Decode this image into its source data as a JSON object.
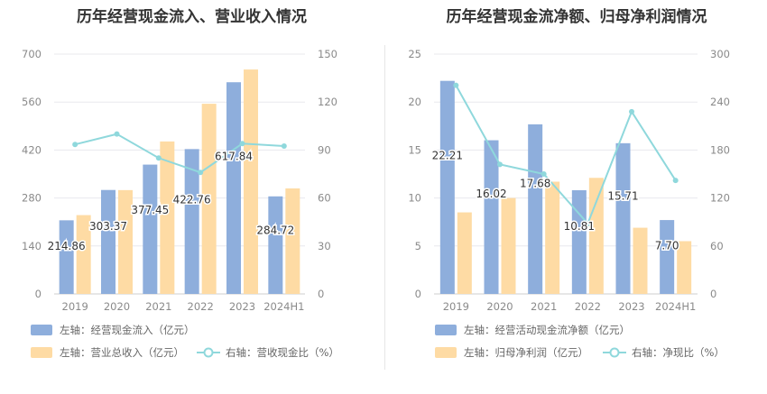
{
  "colors": {
    "bar_blue": "#8eaedc",
    "bar_orange": "#fedba4",
    "line_teal": "#8fd8dc",
    "grid": "#e8e8ee",
    "text": "#333333",
    "axis": "#8a8a8a"
  },
  "chart_data": [
    {
      "type": "bar",
      "title": "历年经营现金流入、营业收入情况",
      "categories": [
        "2019",
        "2020",
        "2021",
        "2022",
        "2023",
        "2024H1"
      ],
      "left_ylim": [
        0,
        700
      ],
      "left_ticks": [
        "0",
        "140",
        "280",
        "420",
        "560",
        "700"
      ],
      "right_ylim": [
        0,
        150
      ],
      "right_ticks": [
        "0",
        "30",
        "60",
        "90",
        "120",
        "150"
      ],
      "grid": true,
      "legend_position": "bottom",
      "series": [
        {
          "name": "左轴：经营现金流入（亿元）",
          "type": "bar",
          "axis": "left",
          "color": "#8eaedc",
          "values": [
            214.86,
            303.37,
            377.45,
            422.76,
            617.84,
            284.72
          ],
          "labels": [
            "214.86",
            "303.37",
            "377.45",
            "422.76",
            "617.84",
            "284.72"
          ]
        },
        {
          "name": "左轴：营业总收入（亿元）",
          "type": "bar",
          "axis": "left",
          "color": "#fedba4",
          "values": [
            230,
            303,
            445,
            555,
            655,
            308
          ]
        },
        {
          "name": "右轴：营收现金比（%）",
          "type": "line",
          "axis": "right",
          "color": "#8fd8dc",
          "values": [
            93.5,
            100,
            85,
            76,
            94,
            92.5
          ]
        }
      ]
    },
    {
      "type": "bar",
      "title": "历年经营现金流净额、归母净利润情况",
      "categories": [
        "2019",
        "2020",
        "2021",
        "2022",
        "2023",
        "2024H1"
      ],
      "left_ylim": [
        0,
        25
      ],
      "left_ticks": [
        "0",
        "5",
        "10",
        "15",
        "20",
        "25"
      ],
      "right_ylim": [
        0,
        300
      ],
      "right_ticks": [
        "0",
        "60",
        "120",
        "180",
        "240",
        "300"
      ],
      "grid": true,
      "legend_position": "bottom",
      "series": [
        {
          "name": "左轴：经营活动现金流净额（亿元）",
          "type": "bar",
          "axis": "left",
          "color": "#8eaedc",
          "values": [
            22.21,
            16.02,
            17.68,
            10.81,
            15.71,
            7.7
          ],
          "labels": [
            "22.21",
            "16.02",
            "17.68",
            "10.81",
            "15.71",
            "7.70"
          ]
        },
        {
          "name": "左轴：归母净利润（亿元）",
          "type": "bar",
          "axis": "left",
          "color": "#fedba4",
          "values": [
            8.5,
            10,
            11.7,
            12.1,
            6.9,
            5.5
          ]
        },
        {
          "name": "右轴：净现比（%）",
          "type": "line",
          "axis": "right",
          "color": "#8fd8dc",
          "values": [
            261,
            162,
            150,
            88,
            228,
            142
          ]
        }
      ]
    }
  ]
}
